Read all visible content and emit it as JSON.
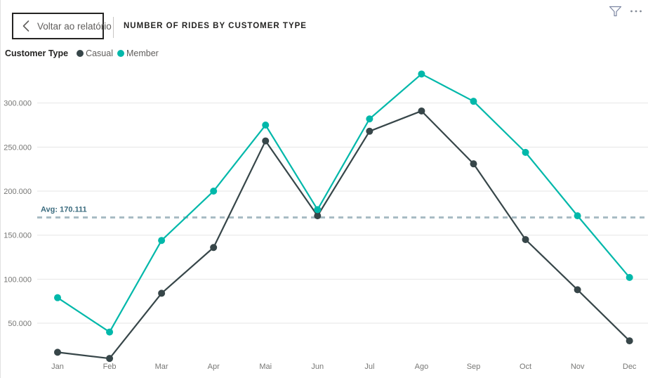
{
  "header": {
    "back_button": {
      "label": "Voltar ao relatório"
    },
    "title": "NUMBER OF RIDES BY CUSTOMER TYPE"
  },
  "legend": {
    "title": "Customer Type",
    "items": [
      {
        "label": "Casual",
        "color": "#374649"
      },
      {
        "label": "Member",
        "color": "#01b8aa"
      }
    ]
  },
  "chart_data": {
    "type": "line",
    "title": "NUMBER OF RIDES BY CUSTOMER TYPE",
    "categories": [
      "Jan",
      "Feb",
      "Mar",
      "Apr",
      "Mai",
      "Jun",
      "Jul",
      "Ago",
      "Sep",
      "Oct",
      "Nov",
      "Dec"
    ],
    "series": [
      {
        "name": "Casual",
        "color": "#374649",
        "values": [
          17000,
          10000,
          84000,
          136000,
          257000,
          172000,
          268000,
          291000,
          231000,
          145000,
          88000,
          30000
        ]
      },
      {
        "name": "Member",
        "color": "#01b8aa",
        "values": [
          79000,
          40000,
          144000,
          200000,
          275000,
          179000,
          282000,
          333000,
          302000,
          244000,
          172000,
          102000
        ]
      }
    ],
    "y_axis": {
      "range": [
        0,
        350000
      ],
      "ticks": [
        {
          "value": 50000,
          "label": "50.000"
        },
        {
          "value": 100000,
          "label": "100.000"
        },
        {
          "value": 150000,
          "label": "150.000"
        },
        {
          "value": 200000,
          "label": "200.000"
        },
        {
          "value": 250000,
          "label": "250.000"
        },
        {
          "value": 300000,
          "label": "300.000"
        }
      ]
    },
    "avg_line": {
      "value": 170111,
      "label": "Avg: 170.111",
      "line_color": "#a9bcc4",
      "label_color": "#3a6b7e"
    },
    "grid": true,
    "grid_color": "#e6e6e6",
    "axis_text_color": "#777775",
    "legend_position": "top-left",
    "xlabel": "",
    "ylabel": ""
  }
}
